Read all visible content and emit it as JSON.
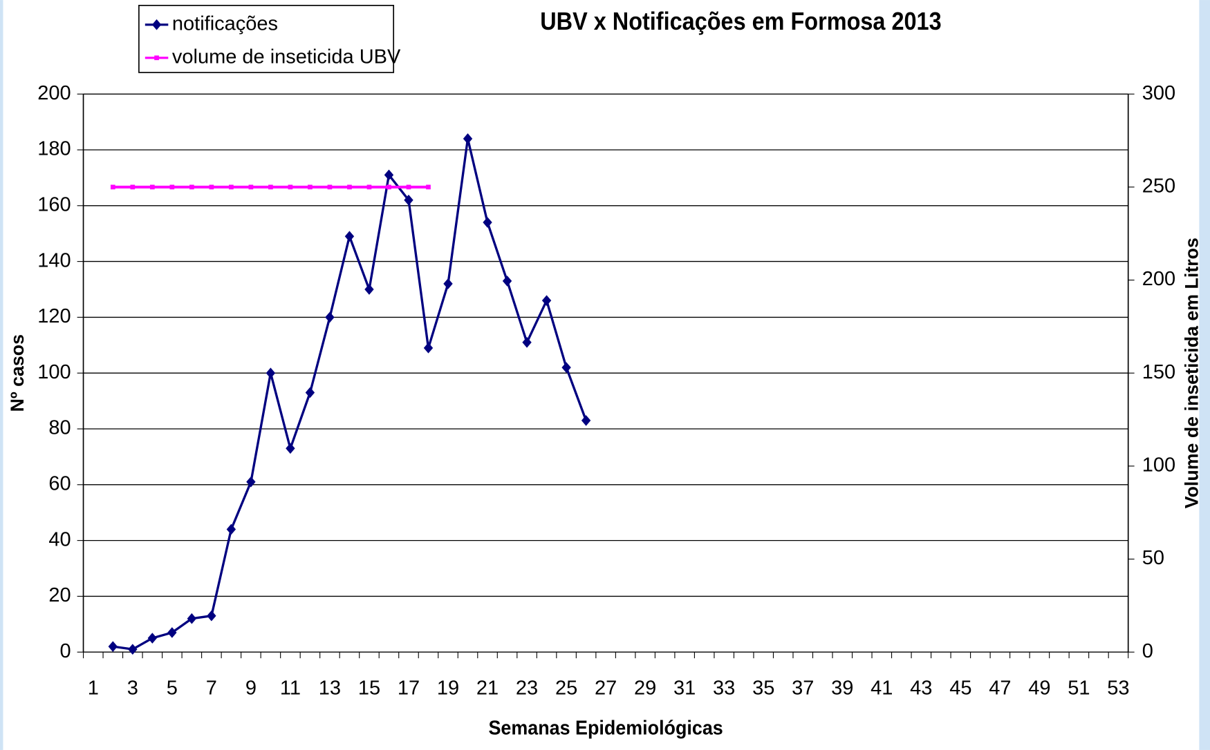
{
  "chart_data": {
    "type": "line",
    "title": "UBV x Notificações em Formosa 2013",
    "x_label": "Semanas Epidemiológicas",
    "y_label": "Nº casos",
    "y2_label": "Volume de inseticida em Litros",
    "categories": [
      "1",
      null,
      "3",
      null,
      "5",
      null,
      "7",
      null,
      "9",
      null,
      "11",
      null,
      "13",
      null,
      "15",
      null,
      "17",
      null,
      "19",
      null,
      "21",
      null,
      "23",
      null,
      "25",
      null,
      "27",
      null,
      "29",
      null,
      "31",
      null,
      "33",
      null,
      "35",
      null,
      "37",
      null,
      "39",
      null,
      "41",
      null,
      "43",
      null,
      "45",
      null,
      "47",
      null,
      "49",
      null,
      "51",
      null,
      "53"
    ],
    "series": [
      {
        "name": "notificações",
        "color": "#000080",
        "values": [
          null,
          2,
          1,
          5,
          7,
          12,
          13,
          44,
          61,
          100,
          73,
          93,
          120,
          149,
          130,
          171,
          162,
          109,
          132,
          184,
          154,
          133,
          111,
          126,
          102,
          83,
          null,
          null,
          null,
          null,
          null,
          null,
          null,
          null,
          null,
          null,
          null,
          null,
          null,
          null,
          null,
          null,
          null,
          null,
          null,
          null,
          null,
          null,
          null,
          null,
          null,
          null,
          null
        ]
      },
      {
        "name": "volume de inseticida UBV",
        "color": "#ff00ff",
        "axis": "y2",
        "values": [
          null,
          250,
          250,
          250,
          250,
          250,
          250,
          250,
          250,
          250,
          250,
          250,
          250,
          250,
          250,
          250,
          250,
          250,
          null,
          null,
          null,
          null,
          null,
          null,
          null,
          null,
          null,
          null,
          null,
          null,
          null,
          null,
          null,
          null,
          null,
          null,
          null,
          null,
          null,
          null,
          null,
          null,
          null,
          null,
          null,
          null,
          null,
          null,
          null,
          null,
          null,
          null,
          null
        ]
      }
    ],
    "ylim": [
      0,
      200
    ],
    "yticks": [
      0,
      20,
      40,
      60,
      80,
      100,
      120,
      140,
      160,
      180,
      200
    ],
    "y2lim": [
      0,
      300
    ],
    "y2ticks": [
      0,
      50,
      100,
      150,
      200,
      250,
      300
    ],
    "grid": true
  }
}
